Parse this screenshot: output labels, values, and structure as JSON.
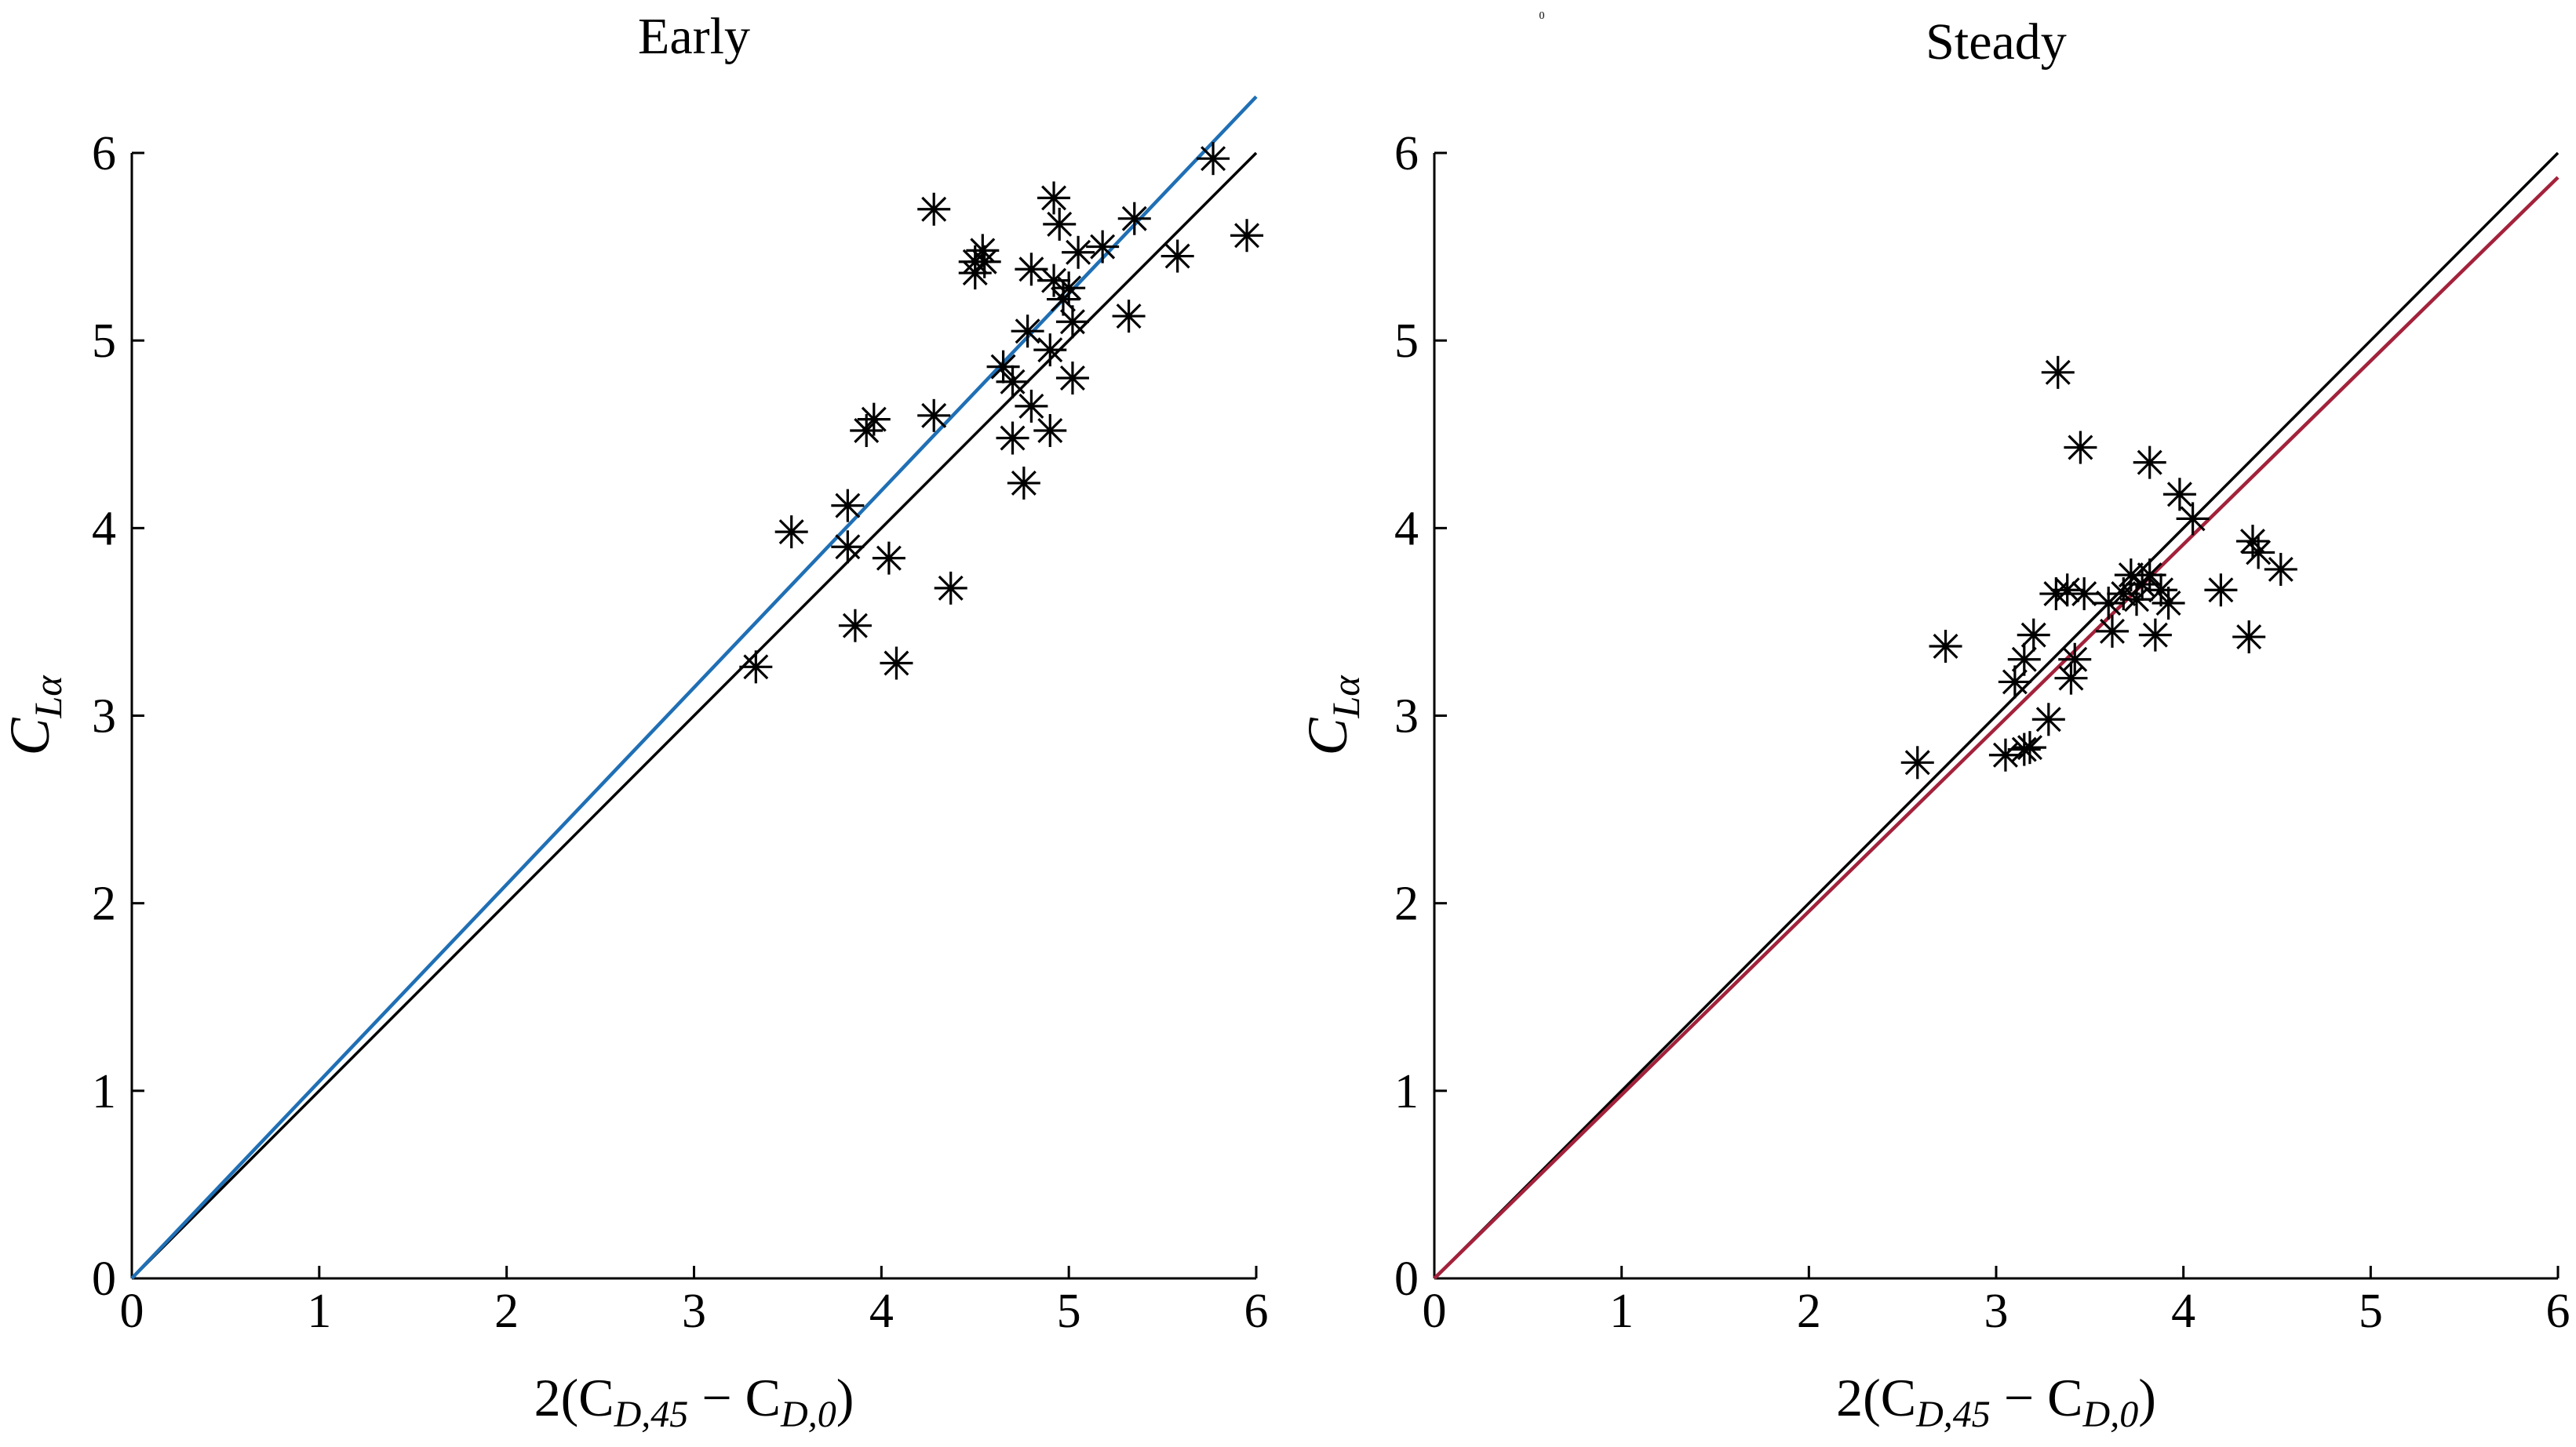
{
  "figure": {
    "center_mark": "0"
  },
  "chart_data": [
    {
      "type": "scatter",
      "title": "Early",
      "xlabel": {
        "prefix": "2(C",
        "sub1": "D,45",
        "mid": " − C",
        "sub2": "D,0",
        "suffix": ")"
      },
      "ylabel": {
        "main": "C",
        "sub": "Lα"
      },
      "xlim": [
        0,
        6
      ],
      "ylim": [
        0,
        6
      ],
      "xticks": [
        0,
        1,
        2,
        3,
        4,
        5,
        6
      ],
      "yticks": [
        0,
        1,
        2,
        3,
        4,
        5,
        6
      ],
      "grid": false,
      "marker": "asterisk",
      "lines": [
        {
          "name": "identity",
          "color": "#000000",
          "x": [
            0,
            6
          ],
          "y": [
            0,
            6
          ]
        },
        {
          "name": "fit",
          "color": "#1f6fb5",
          "x": [
            0,
            6
          ],
          "y": [
            0,
            6.3
          ]
        }
      ],
      "points": [
        [
          3.33,
          3.26
        ],
        [
          3.52,
          3.98
        ],
        [
          3.82,
          4.12
        ],
        [
          3.82,
          3.9
        ],
        [
          3.86,
          3.48
        ],
        [
          3.92,
          4.52
        ],
        [
          3.96,
          4.58
        ],
        [
          4.04,
          3.84
        ],
        [
          4.08,
          3.28
        ],
        [
          4.28,
          4.6
        ],
        [
          4.28,
          5.7
        ],
        [
          4.37,
          3.68
        ],
        [
          4.5,
          5.42
        ],
        [
          4.5,
          5.36
        ],
        [
          4.54,
          5.48
        ],
        [
          4.55,
          5.42
        ],
        [
          4.65,
          4.86
        ],
        [
          4.7,
          4.78
        ],
        [
          4.7,
          4.48
        ],
        [
          4.76,
          4.24
        ],
        [
          4.78,
          5.05
        ],
        [
          4.8,
          4.65
        ],
        [
          4.8,
          5.38
        ],
        [
          4.9,
          4.52
        ],
        [
          4.9,
          4.95
        ],
        [
          4.92,
          5.32
        ],
        [
          4.92,
          5.76
        ],
        [
          4.95,
          5.62
        ],
        [
          4.97,
          5.22
        ],
        [
          5.0,
          5.28
        ],
        [
          5.02,
          5.1
        ],
        [
          5.02,
          4.8
        ],
        [
          5.05,
          5.47
        ],
        [
          5.18,
          5.5
        ],
        [
          5.32,
          5.13
        ],
        [
          5.35,
          5.65
        ],
        [
          5.58,
          5.45
        ],
        [
          5.77,
          5.97
        ],
        [
          5.95,
          5.56
        ]
      ]
    },
    {
      "type": "scatter",
      "title": "Steady",
      "xlabel": {
        "prefix": "2(C",
        "sub1": "D,45",
        "mid": " − C",
        "sub2": "D,0",
        "suffix": ")"
      },
      "ylabel": {
        "main": "C",
        "sub": "Lα"
      },
      "xlim": [
        0,
        6
      ],
      "ylim": [
        0,
        6
      ],
      "xticks": [
        0,
        1,
        2,
        3,
        4,
        5,
        6
      ],
      "yticks": [
        0,
        1,
        2,
        3,
        4,
        5,
        6
      ],
      "grid": false,
      "marker": "asterisk",
      "lines": [
        {
          "name": "identity",
          "color": "#000000",
          "x": [
            0,
            6
          ],
          "y": [
            0,
            6
          ]
        },
        {
          "name": "fit",
          "color": "#a3223b",
          "x": [
            0,
            6
          ],
          "y": [
            0,
            5.87
          ]
        }
      ],
      "points": [
        [
          2.58,
          2.75
        ],
        [
          2.73,
          3.37
        ],
        [
          3.05,
          2.79
        ],
        [
          3.1,
          3.18
        ],
        [
          3.15,
          2.82
        ],
        [
          3.15,
          3.3
        ],
        [
          3.18,
          2.83
        ],
        [
          3.2,
          3.43
        ],
        [
          3.28,
          2.98
        ],
        [
          3.32,
          3.65
        ],
        [
          3.33,
          4.83
        ],
        [
          3.38,
          3.67
        ],
        [
          3.4,
          3.2
        ],
        [
          3.42,
          3.3
        ],
        [
          3.45,
          4.43
        ],
        [
          3.47,
          3.65
        ],
        [
          3.6,
          3.6
        ],
        [
          3.62,
          3.45
        ],
        [
          3.68,
          3.65
        ],
        [
          3.72,
          3.75
        ],
        [
          3.75,
          3.62
        ],
        [
          3.78,
          3.7
        ],
        [
          3.82,
          3.75
        ],
        [
          3.82,
          4.35
        ],
        [
          3.85,
          3.43
        ],
        [
          3.88,
          3.67
        ],
        [
          3.92,
          3.6
        ],
        [
          3.98,
          4.18
        ],
        [
          4.05,
          4.05
        ],
        [
          4.2,
          3.67
        ],
        [
          4.35,
          3.42
        ],
        [
          4.37,
          3.93
        ],
        [
          4.4,
          3.87
        ],
        [
          4.52,
          3.78
        ]
      ]
    }
  ]
}
